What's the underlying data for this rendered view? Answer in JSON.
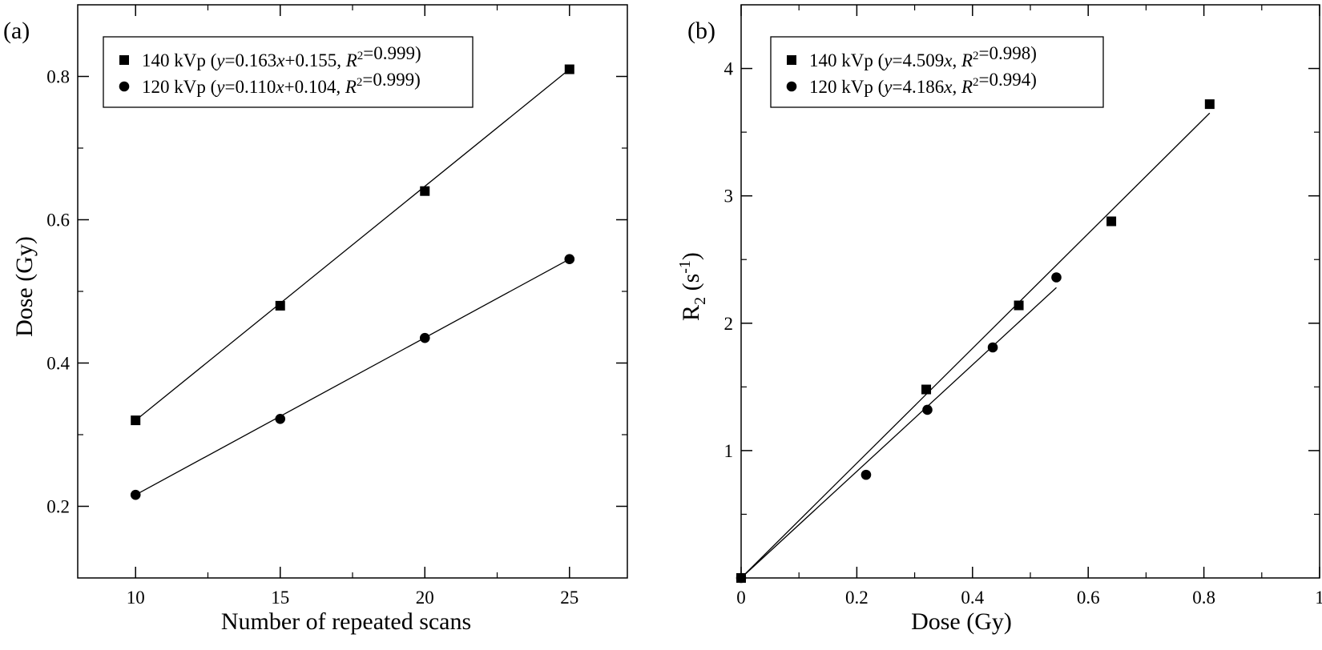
{
  "chart_data": [
    {
      "id": "a",
      "type": "scatter",
      "panel_label": "(a)",
      "xlabel": "Number of repeated scans",
      "ylabel": "Dose (Gy)",
      "xlim": [
        8,
        27
      ],
      "ylim": [
        0.1,
        0.9
      ],
      "xticks": [
        10,
        15,
        20,
        25
      ],
      "xtick_labels": [
        "10",
        "15",
        "20",
        "25"
      ],
      "yticks": [
        0.2,
        0.4,
        0.6,
        0.8
      ],
      "ytick_labels": [
        "0.2",
        "0.4",
        "0.6",
        "0.8"
      ],
      "legend_position": "top-left",
      "series": [
        {
          "name": "140 kVp",
          "fit_label": "(y=0.163x+0.155, R2=0.999)",
          "marker": "square",
          "x": [
            10,
            15,
            20,
            25
          ],
          "y": [
            0.32,
            0.48,
            0.64,
            0.81
          ],
          "fit": {
            "x": [
              10,
              25
            ],
            "y": [
              0.32,
              0.81
            ]
          }
        },
        {
          "name": "120 kVp",
          "fit_label": "(y=0.110x+0.104, R2=0.999)",
          "marker": "circle",
          "x": [
            10,
            15,
            20,
            25
          ],
          "y": [
            0.216,
            0.322,
            0.435,
            0.545
          ],
          "fit": {
            "x": [
              10,
              25
            ],
            "y": [
              0.216,
              0.545
            ]
          }
        }
      ]
    },
    {
      "id": "b",
      "type": "scatter",
      "panel_label": "(b)",
      "xlabel": "Dose (Gy)",
      "ylabel": "R2 (s-1)",
      "xlim": [
        0,
        1
      ],
      "ylim": [
        0,
        4.5
      ],
      "xticks": [
        0,
        0.2,
        0.4,
        0.6,
        0.8,
        1
      ],
      "xtick_labels": [
        "0",
        "0.2",
        "0.4",
        "0.6",
        "0.8",
        "1"
      ],
      "yticks": [
        1,
        2,
        3,
        4
      ],
      "ytick_labels": [
        "1",
        "2",
        "3",
        "4"
      ],
      "legend_position": "top-left",
      "series": [
        {
          "name": "140 kVp",
          "fit_label": "(y=4.509x, R2=0.998)",
          "marker": "square",
          "x": [
            0,
            0.32,
            0.48,
            0.64,
            0.81
          ],
          "y": [
            0,
            1.48,
            2.14,
            2.8,
            3.72
          ],
          "fit": {
            "x": [
              0,
              0.81
            ],
            "y": [
              0,
              3.65
            ]
          }
        },
        {
          "name": "120 kVp",
          "fit_label": "(y=4.186x, R2=0.994)",
          "marker": "circle",
          "x": [
            0,
            0.216,
            0.322,
            0.435,
            0.545
          ],
          "y": [
            0,
            0.81,
            1.32,
            1.81,
            2.36
          ],
          "fit": {
            "x": [
              0,
              0.545
            ],
            "y": [
              0,
              2.28
            ]
          }
        }
      ]
    }
  ]
}
